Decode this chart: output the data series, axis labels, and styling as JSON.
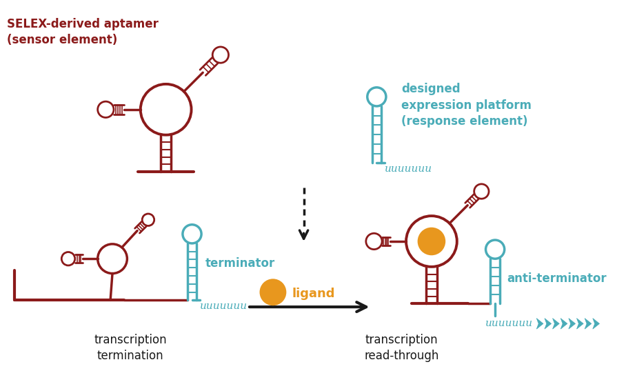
{
  "dark_red": "#8B1A1A",
  "teal": "#4AACB8",
  "orange": "#E8971E",
  "black": "#1a1a1a",
  "background": "#ffffff",
  "text_selex": "SELEX-derived aptamer\n(sensor element)",
  "text_designed": "designed\nexpression platform\n(response element)",
  "text_terminator": "terminator",
  "text_anti_terminator": "anti-terminator",
  "text_ligand": "ligand",
  "text_transcription_termination": "transcription\ntermination",
  "text_transcription_readthrough": "transcription\nread-through"
}
